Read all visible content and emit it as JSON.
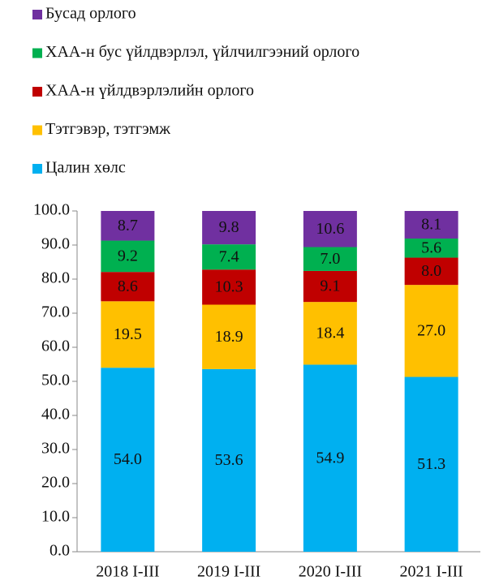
{
  "chart_data": {
    "type": "stacked_bar",
    "categories": [
      "2018 I-III",
      "2019 I-III",
      "2020 I-III",
      "2021 I-III"
    ],
    "series": [
      {
        "name": "Цалин хөлс",
        "color": "#00b0f0",
        "values": [
          54.0,
          53.6,
          54.9,
          51.3
        ],
        "value_labels": [
          "54.0",
          "53.6",
          "54.9",
          "51.3"
        ]
      },
      {
        "name": "Тэтгэвэр, тэтгэмж",
        "color": "#ffc000",
        "values": [
          19.5,
          18.9,
          18.4,
          27.0
        ],
        "value_labels": [
          "19.5",
          "18.9",
          "18.4",
          "27.0"
        ]
      },
      {
        "name": "ХАА-н үйлдвэрлэлийн орлого",
        "color": "#c00000",
        "values": [
          8.6,
          10.3,
          9.1,
          8.0
        ],
        "value_labels": [
          "8.6",
          "10.3",
          "9.1",
          "8.0"
        ]
      },
      {
        "name": "ХАА-н бус үйлдвэрлэл, үйлчилгээний орлого",
        "color": "#00b050",
        "values": [
          9.2,
          7.4,
          7.0,
          5.6
        ],
        "value_labels": [
          "9.2",
          "7.4",
          "7.0",
          "5.6"
        ]
      },
      {
        "name": "Бусад орлого",
        "color": "#7030a0",
        "values": [
          8.7,
          9.8,
          10.6,
          8.1
        ],
        "value_labels": [
          "8.7",
          "9.8",
          "10.6",
          "8.1"
        ]
      }
    ],
    "ylim": [
      0,
      100
    ],
    "yticks": [
      {
        "value": 0,
        "label": "0.0"
      },
      {
        "value": 10,
        "label": "10.0"
      },
      {
        "value": 20,
        "label": "20.0"
      },
      {
        "value": 30,
        "label": "30.0"
      },
      {
        "value": 40,
        "label": "40.0"
      },
      {
        "value": 50,
        "label": "50.0"
      },
      {
        "value": 60,
        "label": "60.0"
      },
      {
        "value": 70,
        "label": "70.0"
      },
      {
        "value": 80,
        "label": "80.0"
      },
      {
        "value": 90,
        "label": "90.0"
      },
      {
        "value": 100,
        "label": "100.0"
      }
    ],
    "legend": "top-left"
  }
}
